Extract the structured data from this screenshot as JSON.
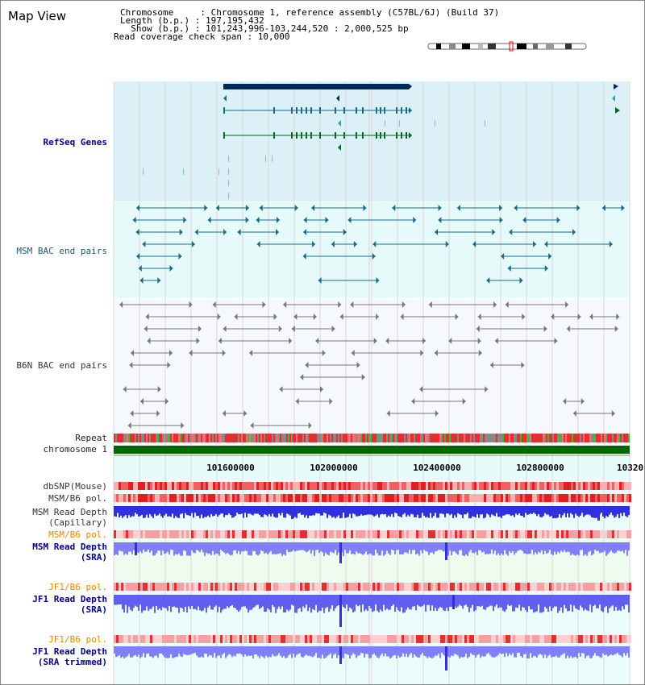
{
  "title": "Map View",
  "info": {
    "chromosome_line": "Chromosome     : Chromosome 1, reference assembly (C57BL/6J) (Build 37)",
    "length_line": "Length (b.p.) : 197,195,432",
    "show_line": "  Show (b.p.) : 101,243,996-103,244,520 : 2,000,525 bp",
    "span_line": "Read coverage check span : 10,000"
  },
  "tracks": {
    "refseq": "RefSeq Genes",
    "msm_bac": "MSM BAC end pairs",
    "b6n_bac": "B6N BAC end pairs",
    "repeat": "Repeat",
    "chromosome": "chromosome 1",
    "dbsnp": "dbSNP(Mouse)",
    "msm_b6_pol_1": "MSM/B6 pol.",
    "msm_read_depth_cap_1": "MSM Read Depth",
    "msm_read_depth_cap_2": "(Capillary)",
    "msm_b6_pol_2": "MSM/B6 pol.",
    "msm_read_depth_sra_1": "MSM Read Depth",
    "msm_read_depth_sra_2": "(SRA)",
    "jf1_b6_pol_1": "JF1/B6 pol.",
    "jf1_read_depth_sra_1": "JF1 Read Depth",
    "jf1_read_depth_sra_2": "(SRA)",
    "jf1_b6_pol_2": "JF1/B6 pol.",
    "jf1_read_depth_trim_1": "JF1 Read Depth",
    "jf1_read_depth_trim_2": "(SRA trimmed)"
  },
  "ruler": {
    "ticks": [
      "101600000",
      "102000000",
      "102400000",
      "102800000",
      "10320"
    ]
  },
  "colors": {
    "refseq_bg": "#dcf0f8",
    "msm_bg": "#e6fafa",
    "b6n_bg": "#f3f8fa",
    "gene_dark": "#002a5a",
    "gene_teal": "#1a6a8a",
    "gene_green": "#006a20",
    "repeat_red": "#e03030",
    "chrom_green": "#006600",
    "depth_blue": "#3030e0",
    "depth_light": "#8080ff"
  }
}
